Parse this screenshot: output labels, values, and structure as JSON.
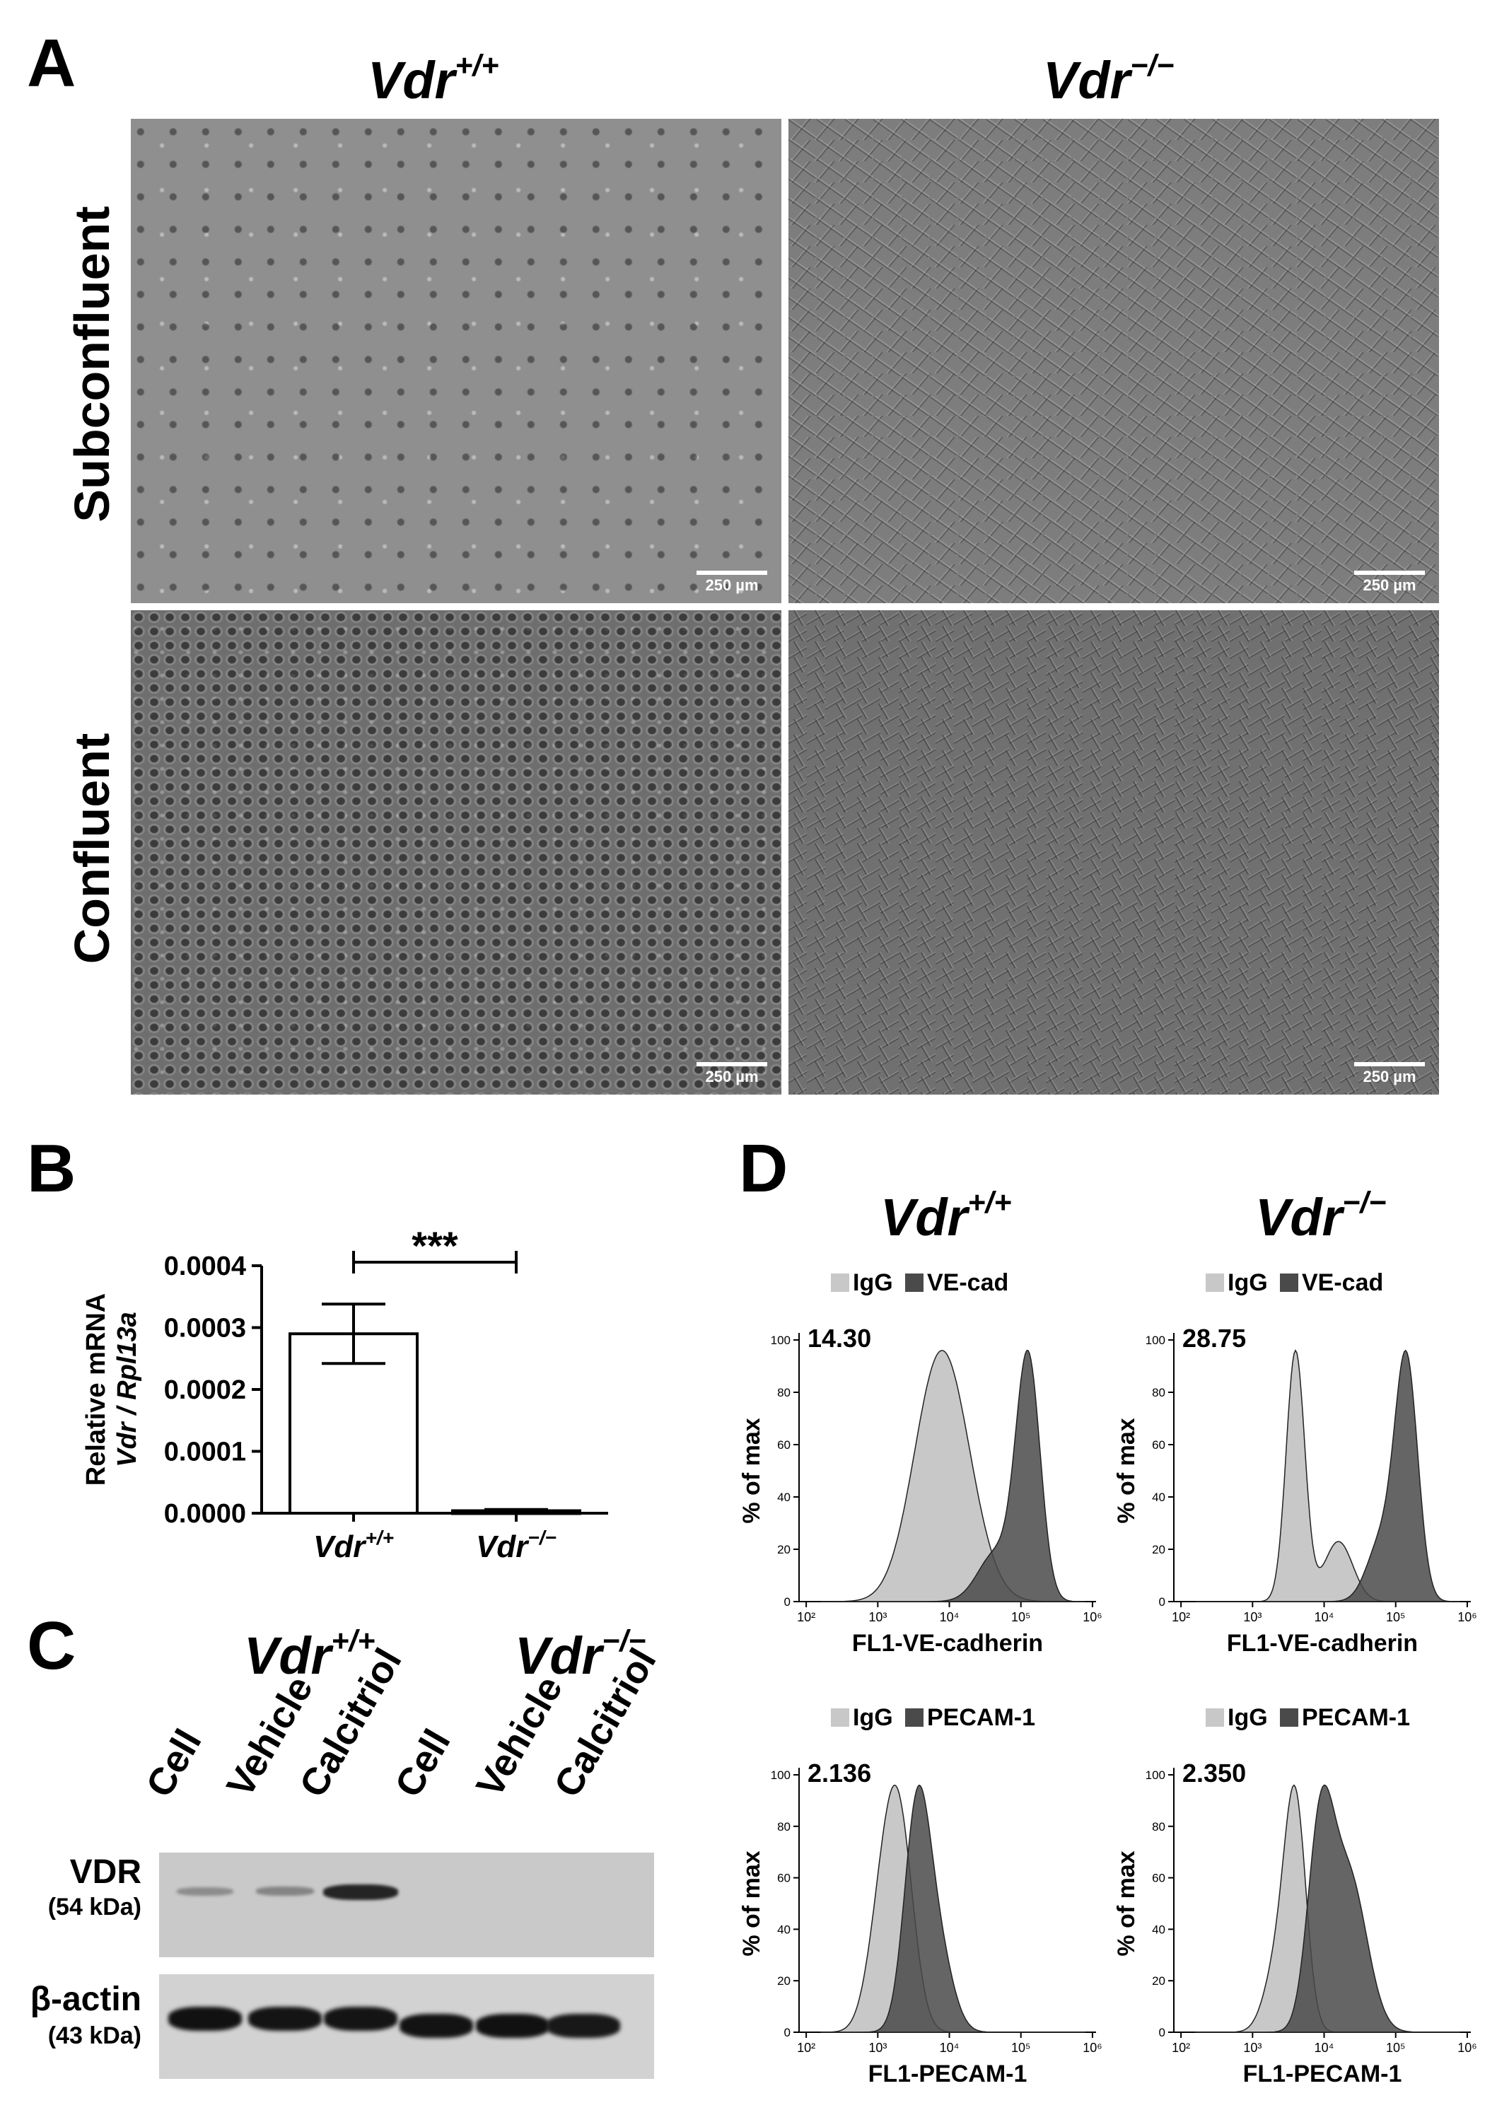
{
  "panel_a": {
    "label": "A",
    "col_wt_base": "Vdr",
    "col_wt_sup": "+/+",
    "col_ko_base": "Vdr",
    "col_ko_sup": "−/−",
    "row_top": "Subconfluent",
    "row_bottom": "Confluent",
    "scale_bar": "250 µm"
  },
  "panel_b": {
    "label": "B",
    "ylabel_line1": "Relative mRNA",
    "ylabel_line2": "Vdr / Rpl13a",
    "significance": "***",
    "chart_data": {
      "type": "bar",
      "categories": [
        "Vdr+/+",
        "Vdr−/−"
      ],
      "values": [
        0.00029,
        4e-06
      ],
      "errors": [
        4.8e-05,
        2e-06
      ],
      "ylim": [
        0,
        0.0004
      ],
      "yticks": [
        "0.0000",
        "0.0001",
        "0.0002",
        "0.0003",
        "0.0004"
      ],
      "xlabels": [
        {
          "base": "Vdr",
          "sup": "+/+"
        },
        {
          "base": "Vdr",
          "sup": "−/−"
        }
      ],
      "colors": {
        "wt": "#ffffff",
        "ko": "#1a1a1a"
      }
    }
  },
  "panel_c": {
    "label": "C",
    "group_wt_base": "Vdr",
    "group_wt_sup": "+/+",
    "group_ko_base": "Vdr",
    "group_ko_sup": "−/−",
    "lanes": [
      "Cell",
      "Vehicle",
      "Calcitriol",
      "Cell",
      "Vehicle",
      "Calcitriol"
    ],
    "vdr_label": "VDR",
    "vdr_size": "(54 kDa)",
    "actin_label": "β-actin",
    "actin_size": "(43 kDa)",
    "vdr_intensity": [
      0.25,
      0.3,
      0.9,
      0,
      0,
      0
    ],
    "actin_intensity": [
      0.95,
      0.9,
      0.88,
      0.92,
      0.95,
      0.8
    ]
  },
  "panel_d": {
    "label": "D",
    "col_wt_base": "Vdr",
    "col_wt_sup": "+/+",
    "col_ko_base": "Vdr",
    "col_ko_sup": "−/−",
    "chart_data": [
      {
        "type": "area",
        "legend": [
          "IgG",
          "VE-cad"
        ],
        "value": "14.30",
        "xlabel": "FL1-VE-cadherin",
        "ylabel": "% of max",
        "yticks": [
          0,
          20,
          40,
          60,
          80,
          100
        ],
        "xticks": [
          "10²",
          "10³",
          "10⁴",
          "10⁵",
          "10⁶"
        ],
        "series": [
          {
            "log_peak": 3.8,
            "log_width": 0.35,
            "extra": [
              {
                "at": 4.1,
                "h": 0.55,
                "w": 0.35
              }
            ]
          },
          {
            "log_peak": 5.1,
            "log_width": 0.17,
            "extra": [
              {
                "at": 4.65,
                "h": 0.2,
                "w": 0.25
              }
            ]
          }
        ]
      },
      {
        "type": "area",
        "legend": [
          "IgG",
          "VE-cad"
        ],
        "value": "28.75",
        "xlabel": "FL1-VE-cadherin",
        "ylabel": "% of max",
        "yticks": [
          0,
          20,
          40,
          60,
          80,
          100
        ],
        "xticks": [
          "10²",
          "10³",
          "10⁴",
          "10⁵",
          "10⁶"
        ],
        "series": [
          {
            "log_peak": 3.6,
            "log_width": 0.13,
            "extra": [
              {
                "at": 4.2,
                "h": 0.24,
                "w": 0.2
              }
            ]
          },
          {
            "log_peak": 5.15,
            "log_width": 0.16,
            "extra": [
              {
                "at": 4.8,
                "h": 0.25,
                "w": 0.2
              }
            ]
          }
        ]
      },
      {
        "type": "area",
        "legend": [
          "IgG",
          "PECAM-1"
        ],
        "value": "2.136",
        "xlabel": "FL1-PECAM-1",
        "ylabel": "% of max",
        "yticks": [
          0,
          20,
          40,
          60,
          80,
          100
        ],
        "xticks": [
          "10²",
          "10³",
          "10⁴",
          "10⁵",
          "10⁶"
        ],
        "series": [
          {
            "log_peak": 3.3,
            "log_width": 0.2,
            "extra": [
              {
                "at": 3.05,
                "h": 0.5,
                "w": 0.2
              }
            ]
          },
          {
            "log_peak": 3.55,
            "log_width": 0.18,
            "extra": [
              {
                "at": 3.85,
                "h": 0.35,
                "w": 0.2
              }
            ]
          }
        ]
      },
      {
        "type": "area",
        "legend": [
          "IgG",
          "PECAM-1"
        ],
        "value": "2.350",
        "xlabel": "FL1-PECAM-1",
        "ylabel": "% of max",
        "yticks": [
          0,
          20,
          40,
          60,
          80,
          100
        ],
        "xticks": [
          "10²",
          "10³",
          "10⁴",
          "10⁵",
          "10⁶"
        ],
        "series": [
          {
            "log_peak": 3.6,
            "log_width": 0.15,
            "extra": [
              {
                "at": 3.35,
                "h": 0.3,
                "w": 0.18
              }
            ]
          },
          {
            "log_peak": 3.95,
            "log_width": 0.18,
            "extra": [
              {
                "at": 4.35,
                "h": 0.78,
                "w": 0.25
              }
            ]
          }
        ]
      }
    ],
    "colors": {
      "igg": "#c8c8c8",
      "stain": "#4a4a4a"
    }
  }
}
